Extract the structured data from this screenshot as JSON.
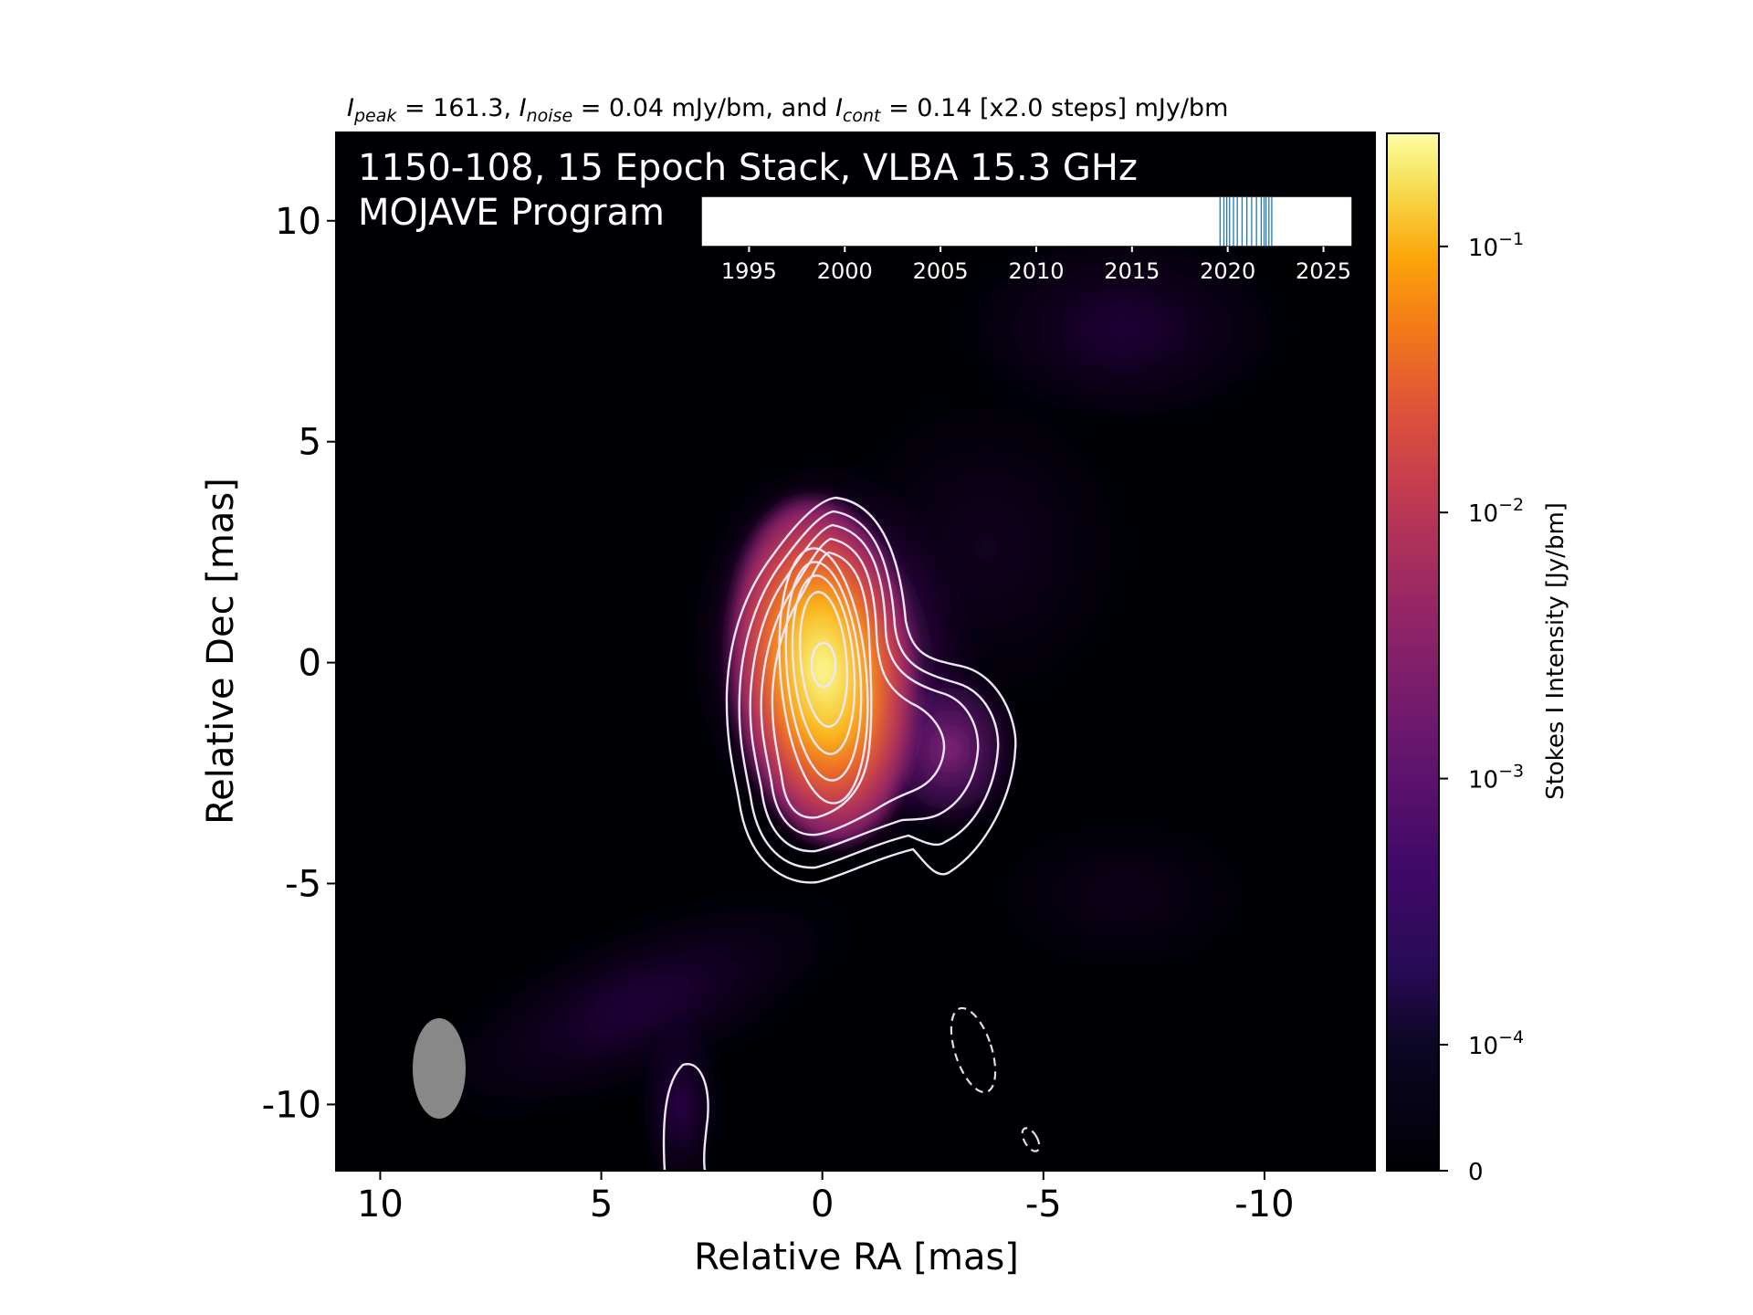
{
  "chart_data": {
    "type": "heatmap",
    "header": {
      "i_peak_sym": "I",
      "i_peak_sub": "peak",
      "i_peak_val": " = 161.3, ",
      "i_noise_sym": "I",
      "i_noise_sub": "noise",
      "i_noise_val": " = 0.04 mJy/bm, and ",
      "i_cont_sym": "I",
      "i_cont_sub": "cont",
      "i_cont_val": " = 0.14 [x2.0 steps] mJy/bm"
    },
    "title_line1": "1150-108, 15 Epoch Stack, VLBA 15.3 GHz",
    "title_line2": "MOJAVE Program",
    "xlabel": "Relative RA [mas]",
    "ylabel": "Relative Dec [mas]",
    "xlim": [
      11.0,
      -12.5
    ],
    "ylim": [
      -11.5,
      12.0
    ],
    "xticks": [
      {
        "value": 10,
        "label": "10"
      },
      {
        "value": 5,
        "label": "5"
      },
      {
        "value": 0,
        "label": "0"
      },
      {
        "value": -5,
        "label": "-5"
      },
      {
        "value": -10,
        "label": "-10"
      }
    ],
    "yticks": [
      {
        "value": 10,
        "label": "10"
      },
      {
        "value": 5,
        "label": "5"
      },
      {
        "value": 0,
        "label": "0"
      },
      {
        "value": -5,
        "label": "-5"
      },
      {
        "value": -10,
        "label": "-10"
      }
    ],
    "colorbar": {
      "label": "Stokes I Intensity [Jy/bm]",
      "scale": "symlog",
      "colormap": "inferno",
      "ticks": [
        {
          "label": "0",
          "base": "",
          "exp": ""
        },
        {
          "label": "",
          "base": "10",
          "exp": "−4"
        },
        {
          "label": "",
          "base": "10",
          "exp": "−3"
        },
        {
          "label": "",
          "base": "10",
          "exp": "−2"
        },
        {
          "label": "",
          "base": "10",
          "exp": "−1"
        }
      ]
    },
    "peak_position": [
      0,
      0
    ],
    "epoch_timeline": {
      "xlim": [
        1992.5,
        2026.5
      ],
      "tick_labels": [
        "1995",
        "2000",
        "2005",
        "2010",
        "2015",
        "2020",
        "2025"
      ],
      "tick_values": [
        1995,
        2000,
        2005,
        2010,
        2015,
        2020,
        2025
      ],
      "epochs": [
        2019.6,
        2019.8,
        2019.95,
        2020.1,
        2020.3,
        2020.5,
        2020.75,
        2021.0,
        2021.25,
        2021.5,
        2021.75,
        2022.0,
        2022.15,
        2022.3,
        2021.9
      ],
      "epoch_color": "#1f77b4"
    },
    "beam": {
      "center": [
        8.8,
        -9.5
      ],
      "major_mas": 2.3,
      "minor_mas": 1.2,
      "color": "#888888"
    },
    "contour_color": "#f0e6f5",
    "background_color": "#000004"
  }
}
